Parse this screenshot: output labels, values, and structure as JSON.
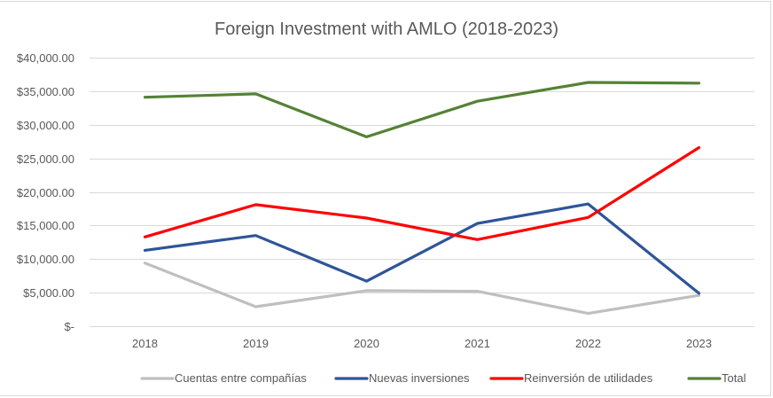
{
  "chart_data": {
    "type": "line",
    "title": "Foreign Investment with AMLO (2018-2023)",
    "xlabel": "",
    "ylabel": "",
    "categories": [
      "2018",
      "2019",
      "2020",
      "2021",
      "2022",
      "2023"
    ],
    "ylim": [
      0,
      40000
    ],
    "yticks": [
      0,
      5000,
      10000,
      15000,
      20000,
      25000,
      30000,
      35000,
      40000
    ],
    "ytick_labels": [
      "$-",
      "$5,000.00",
      "$10,000.00",
      "$15,000.00",
      "$20,000.00",
      "$25,000.00",
      "$30,000.00",
      "$35,000.00",
      "$40,000.00"
    ],
    "grid": true,
    "legend_position": "bottom",
    "series": [
      {
        "name": "Cuentas entre compañías",
        "color": "#bfbfbf",
        "values": [
          9400,
          2900,
          5300,
          5200,
          1900,
          4600
        ]
      },
      {
        "name": "Nuevas inversiones",
        "color": "#2f5597",
        "values": [
          11300,
          13500,
          6700,
          15300,
          18200,
          4900
        ]
      },
      {
        "name": "Reinversión de utilidades",
        "color": "#ff0000",
        "values": [
          13300,
          18100,
          16100,
          12900,
          16200,
          26600
        ]
      },
      {
        "name": "Total",
        "color": "#548235",
        "values": [
          34100,
          34600,
          28200,
          33500,
          36300,
          36200
        ]
      }
    ]
  }
}
